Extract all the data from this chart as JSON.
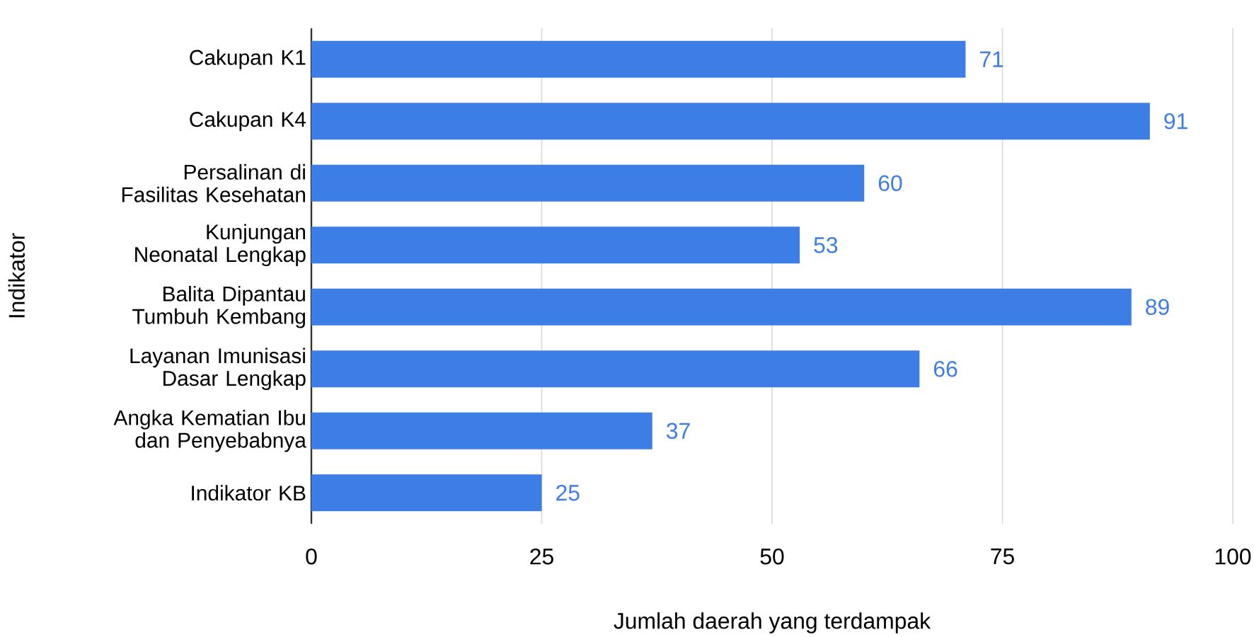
{
  "chart_data": {
    "type": "bar",
    "orientation": "horizontal",
    "xlabel": "Jumlah daerah yang terdampak",
    "ylabel": "Indikator",
    "categories": [
      "Cakupan K1",
      "Cakupan K4",
      "Persalinan di Fasilitas Kesehatan",
      "Kunjungan Neonatal Lengkap",
      "Balita Dipantau Tumbuh Kembang",
      "Layanan Imunisasi Dasar Lengkap",
      "Angka Kematian Ibu dan Penyebabnya",
      "Indikator KB"
    ],
    "values": [
      71,
      91,
      60,
      53,
      89,
      66,
      37,
      25
    ],
    "color": "#3d7ee6",
    "data_labels": true,
    "xlim": [
      0,
      100
    ],
    "xticks": [
      0,
      25,
      50,
      75,
      100
    ],
    "grid": "x"
  }
}
